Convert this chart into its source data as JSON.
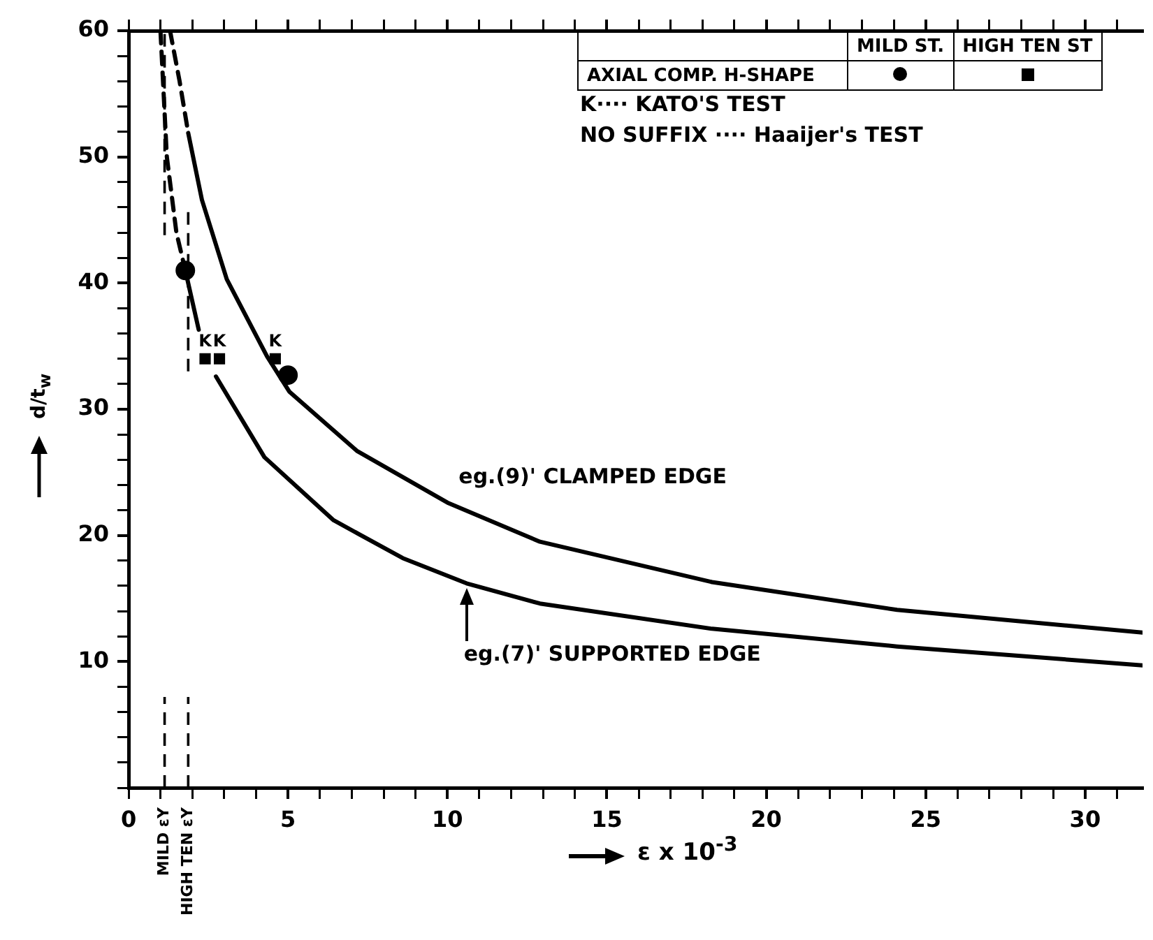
{
  "chart_data": {
    "type": "line",
    "xlabel": "ε x 10$^{-3}$",
    "ylabel": "d/t$_{w}$",
    "legend_title": "AXIAL COMP. H-SHAPE",
    "legend": "top right",
    "grid": false,
    "xlim": [
      0,
      31.8
    ],
    "ylim": [
      0,
      60
    ],
    "xticks": [
      0,
      {
        "value": 1,
        "label": null
      },
      {
        "value": 2,
        "label": null
      },
      {
        "value": 3,
        "label": null
      },
      {
        "value": 4,
        "label": null
      },
      5,
      {
        "value": 6,
        "label": null
      },
      {
        "value": 7,
        "label": null
      },
      {
        "value": 8,
        "label": null
      },
      {
        "value": 9,
        "label": null
      },
      10,
      {
        "value": 11,
        "label": null
      },
      {
        "value": 12,
        "label": null
      },
      {
        "value": 13,
        "label": null
      },
      {
        "value": 14,
        "label": null
      },
      15,
      {
        "value": 16,
        "label": null
      },
      {
        "value": 17,
        "label": null
      },
      {
        "value": 18,
        "label": null
      },
      {
        "value": 19,
        "label": null
      },
      20,
      {
        "value": 21,
        "label": null
      },
      {
        "value": 22,
        "label": null
      },
      {
        "value": 23,
        "label": null
      },
      {
        "value": 24,
        "label": null
      },
      25,
      {
        "value": 26,
        "label": null
      },
      {
        "value": 27,
        "label": null
      },
      {
        "value": 28,
        "label": null
      },
      {
        "value": 29,
        "label": null
      },
      30,
      {
        "value": 31,
        "label": null
      }
    ],
    "yticks": [
      {
        "value": 0,
        "label": null
      },
      {
        "value": 2,
        "label": null
      },
      {
        "value": 4,
        "label": null
      },
      {
        "value": 6,
        "label": null
      },
      {
        "value": 8,
        "label": null
      },
      10,
      {
        "value": 12,
        "label": null
      },
      {
        "value": 14,
        "label": null
      },
      {
        "value": 16,
        "label": null
      },
      {
        "value": 18,
        "label": null
      },
      20,
      {
        "value": 22,
        "label": null
      },
      {
        "value": 24,
        "label": null
      },
      {
        "value": 26,
        "label": null
      },
      {
        "value": 28,
        "label": null
      },
      30,
      {
        "value": 32,
        "label": null
      },
      {
        "value": 34,
        "label": null
      },
      {
        "value": 36,
        "label": null
      },
      {
        "value": 38,
        "label": null
      },
      40,
      {
        "value": 42,
        "label": null
      },
      {
        "value": 44,
        "label": null
      },
      {
        "value": 46,
        "label": null
      },
      {
        "value": 48,
        "label": null
      },
      50,
      {
        "value": 52,
        "label": null
      },
      {
        "value": 54,
        "label": null
      },
      {
        "value": 56,
        "label": null
      },
      {
        "value": 58,
        "label": null
      },
      60
    ],
    "series": [
      {
        "name": "eg.(9)' CLAMPED EDGE",
        "color": "#000000",
        "line_style": "solid",
        "marker": "none",
        "x": [
          1.87,
          2.3,
          3.08,
          4.34,
          5.04,
          7.16,
          10,
          12.9,
          18.3,
          24.1,
          31.8
        ],
        "values": [
          51.9,
          46.6,
          40.3,
          34.2,
          31.4,
          26.7,
          22.6,
          19.5,
          16.3,
          14.1,
          12.3
        ]
      },
      {
        "color": "#000000",
        "line_style": "dashed",
        "marker": "none",
        "x": [
          1.3,
          1.6,
          1.87
        ],
        "values": [
          60,
          56,
          51.9
        ]
      },
      {
        "name": "eg.(7)' SUPPORTED EDGE",
        "color": "#000000",
        "line_style": "solid",
        "marker": "none",
        "x": [
          1.78,
          2.2,
          2.5,
          2.74,
          4.26,
          6.43,
          8.6,
          10.6,
          12.9,
          18.3,
          24.1,
          31.8
        ],
        "values": [
          41,
          36.3,
          null,
          32.6,
          26.2,
          21.2,
          18.2,
          16.2,
          14.6,
          12.6,
          11.2,
          9.7
        ]
      },
      {
        "color": "#000000",
        "line_style": "dashed",
        "marker": "none",
        "x": [
          1,
          1.2,
          1.5,
          1.78
        ],
        "values": [
          60,
          50,
          44,
          41
        ]
      },
      {
        "name": "MILD ST.",
        "type": "scatter",
        "color": "#000000",
        "marker": "circle",
        "x": [
          1.78,
          5
        ],
        "values": [
          41,
          32.7
        ]
      },
      {
        "name": "HIGH TEN ST",
        "type": "scatter",
        "color": "#000000",
        "marker": "square",
        "x": [
          2.4,
          2.85,
          4.6
        ],
        "values": [
          34,
          34,
          34
        ]
      }
    ],
    "annotations": [
      {
        "text": "K",
        "x": 2.4,
        "y": 34
      },
      {
        "text": "K",
        "x": 2.85,
        "y": 34
      },
      {
        "text": "K",
        "x": 4.6,
        "y": 34
      },
      "K···· KATO'S TEST",
      "NO SUFFIX ···· Haaijer's TEST"
    ],
    "ref_lines": [
      {
        "axis": "x",
        "value": 1.13,
        "label": "MILD εY",
        "line_style": "dashed"
      },
      {
        "axis": "x",
        "value": 1.87,
        "label": "HIGH TEN εY",
        "line_style": "dashed"
      }
    ]
  }
}
